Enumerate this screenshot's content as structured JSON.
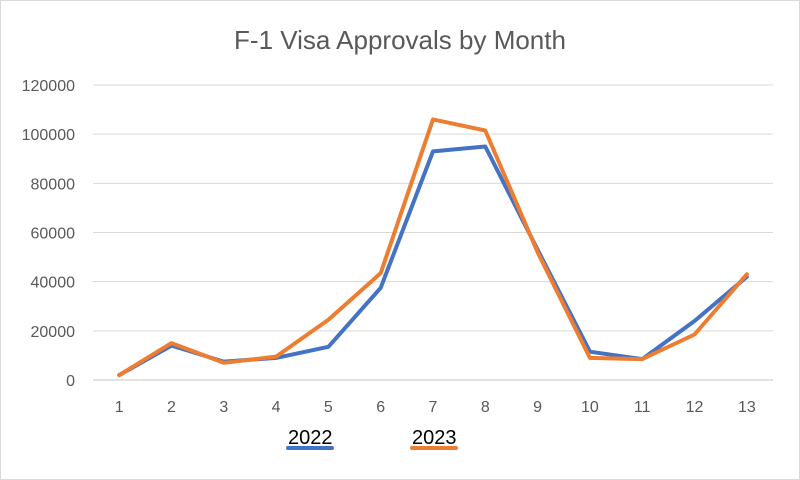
{
  "chart_data": {
    "type": "line",
    "title": "F-1 Visa Approvals by Month",
    "xlabel": "",
    "ylabel": "",
    "categories": [
      "1",
      "2",
      "3",
      "4",
      "5",
      "6",
      "7",
      "8",
      "9",
      "10",
      "11",
      "12",
      "13"
    ],
    "ylim": [
      0,
      120000
    ],
    "yticks": [
      0,
      20000,
      40000,
      60000,
      80000,
      100000,
      120000
    ],
    "ytick_labels": [
      "0",
      "20000",
      "40000",
      "60000",
      "80000",
      "100000",
      "120000"
    ],
    "grid": true,
    "legend_position": "bottom-left",
    "series": [
      {
        "name": "2022",
        "color": "#4472c4",
        "values": [
          2000,
          14000,
          7500,
          9000,
          13500,
          37500,
          93000,
          95000,
          53000,
          11500,
          8500,
          24000,
          42000
        ]
      },
      {
        "name": "2023",
        "color": "#ed7d31",
        "values": [
          2000,
          15000,
          7000,
          9500,
          24500,
          43500,
          106000,
          101500,
          52000,
          9000,
          8500,
          18500,
          43000
        ]
      }
    ],
    "gridline_color": "#d9d9d9",
    "text_color": "#595959"
  }
}
